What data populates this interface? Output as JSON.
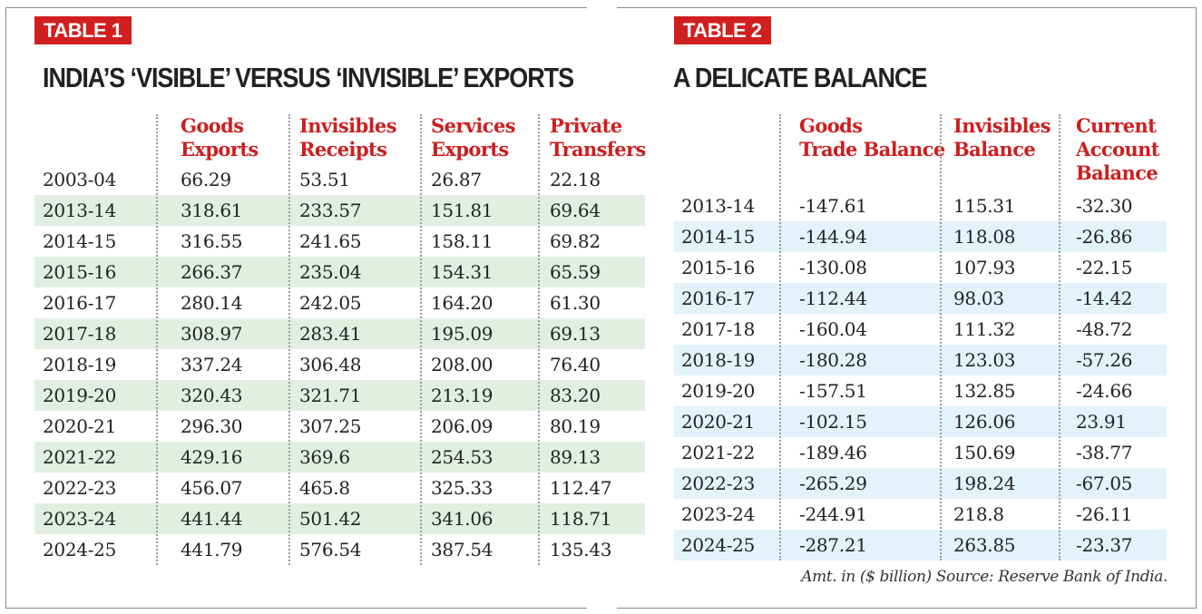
{
  "table1": {
    "badge": "TABLE 1",
    "title": "INDIA’S ‘VISIBLE’ VERSUS ‘INVISIBLE’ EXPORTS",
    "headers": [
      [
        "Goods",
        "Exports"
      ],
      [
        "Invisibles",
        "Receipts"
      ],
      [
        "Services",
        "Exports"
      ],
      [
        "Private",
        "Transfers"
      ]
    ],
    "rows": [
      [
        "2003-04",
        "66.29",
        "53.51",
        "26.87",
        "22.18"
      ],
      [
        "2013-14",
        "318.61",
        "233.57",
        "151.81",
        "69.64"
      ],
      [
        "2014-15",
        "316.55",
        "241.65",
        "158.11",
        "69.82"
      ],
      [
        "2015-16",
        "266.37",
        "235.04",
        "154.31",
        "65.59"
      ],
      [
        "2016-17",
        "280.14",
        "242.05",
        "164.20",
        "61.30"
      ],
      [
        "2017-18",
        "308.97",
        "283.41",
        "195.09",
        "69.13"
      ],
      [
        "2018-19",
        "337.24",
        "306.48",
        "208.00",
        "76.40"
      ],
      [
        "2019-20",
        "320.43",
        "321.71",
        "213.19",
        "83.20"
      ],
      [
        "2020-21",
        "296.30",
        "307.25",
        "206.09",
        "80.19"
      ],
      [
        "2021-22",
        "429.16",
        "369.6",
        "254.53",
        "89.13"
      ],
      [
        "2022-23",
        "456.07",
        "465.8",
        "325.33",
        "112.47"
      ],
      [
        "2023-24",
        "441.44",
        "501.42",
        "341.06",
        "118.71"
      ],
      [
        "2024-25",
        "441.79",
        "576.54",
        "387.54",
        "135.43"
      ]
    ]
  },
  "table2": {
    "badge": "TABLE 2",
    "title": "A DELICATE BALANCE",
    "headers": [
      [
        "Goods",
        "Trade Balance"
      ],
      [
        "Invisibles",
        "Balance"
      ],
      [
        "Current",
        "Account",
        "Balance"
      ]
    ],
    "rows": [
      [
        "2013-14",
        "-147.61",
        "115.31",
        "-32.30"
      ],
      [
        "2014-15",
        "-144.94",
        "118.08",
        "-26.86"
      ],
      [
        "2015-16",
        "-130.08",
        "107.93",
        "-22.15"
      ],
      [
        "2016-17",
        "-112.44",
        "98.03",
        "-14.42"
      ],
      [
        "2017-18",
        "-160.04",
        "111.32",
        "-48.72"
      ],
      [
        "2018-19",
        "-180.28",
        "123.03",
        "-57.26"
      ],
      [
        "2019-20",
        "-157.51",
        "132.85",
        "-24.66"
      ],
      [
        "2020-21",
        "-102.15",
        "126.06",
        "23.91"
      ],
      [
        "2021-22",
        "-189.46",
        "150.69",
        "-38.77"
      ],
      [
        "2022-23",
        "-265.29",
        "198.24",
        "-67.05"
      ],
      [
        "2023-24",
        "-244.91",
        "218.8",
        "-26.11"
      ],
      [
        "2024-25",
        "-287.21",
        "263.85",
        "-23.37"
      ]
    ]
  },
  "footnote": "Amt. in ($ billion) Source: Reserve Bank of India.",
  "colors": {
    "accent_red": "#d11f1f",
    "header_red": "#cc1f1f",
    "band_green": "#e1efe2",
    "band_blue": "#e2f3fb"
  }
}
